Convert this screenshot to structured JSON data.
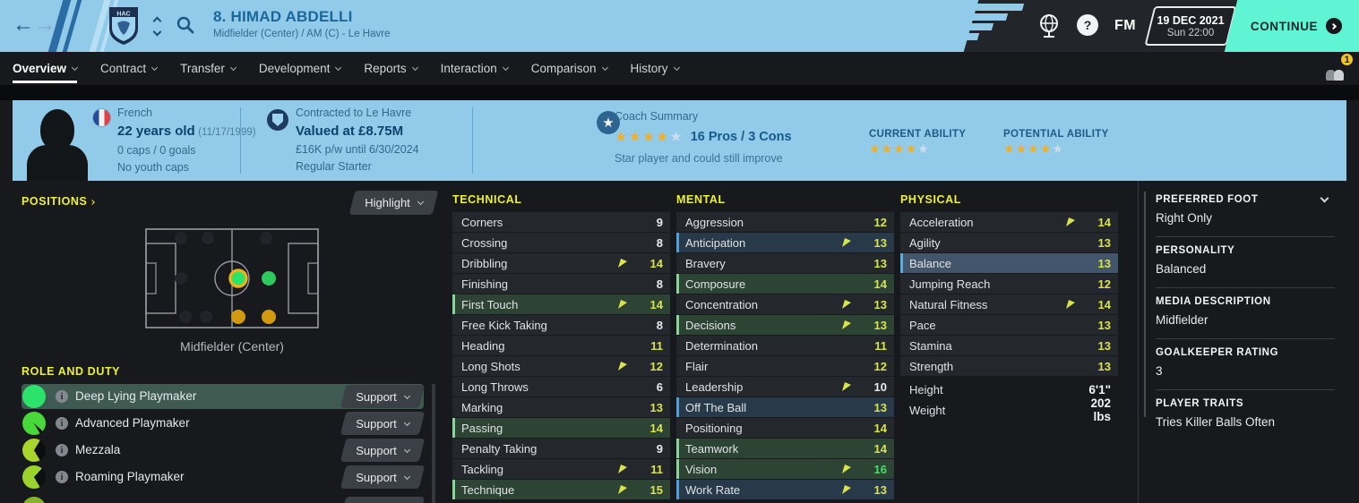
{
  "colors": {
    "header_blue": "#92cbea",
    "accent_yellow": "#edf233",
    "mint_continue": "#5ff5d4",
    "star_gold": "#f2af23",
    "attr_low": "#e9ebec",
    "attr_mid": "#d9e44c",
    "attr_high": "#4ade68",
    "highlight_green_row": "#2d4435",
    "highlight_blue_row": "#28394a"
  },
  "header": {
    "player_title": "8. HIMAD ABDELLI",
    "player_subtitle": "Midfielder (Center) / AM (C) - Le Havre",
    "fm_logo": "FM",
    "date_line1": "19 DEC 2021",
    "date_line2": "Sun 22:00",
    "continue_label": "CONTINUE"
  },
  "tabs": [
    {
      "label": "Overview",
      "active": true
    },
    {
      "label": "Contract"
    },
    {
      "label": "Transfer"
    },
    {
      "label": "Development"
    },
    {
      "label": "Reports"
    },
    {
      "label": "Interaction"
    },
    {
      "label": "Comparison"
    },
    {
      "label": "History"
    }
  ],
  "notification_badge": "1",
  "info_bar": {
    "nationality": "French",
    "age_bold": "22 years old",
    "birthdate": "(11/17/1999)",
    "caps": "0 caps / 0 goals",
    "youth_caps": "No youth caps",
    "contracted": "Contracted to Le Havre",
    "value_bold": "Valued at £8.75M",
    "wage": "£16K p/w until 6/30/2024",
    "status": "Regular Starter",
    "coach_summary_label": "Coach Summary",
    "coach_stars": 4,
    "stars_total": 5,
    "pros_cons": "16 Pros / 3 Cons",
    "coach_note": "Star player and could still improve",
    "current_ability_label": "CURRENT ABILITY",
    "current_ability_stars": 4,
    "potential_ability_label": "POTENTIAL ABILITY",
    "potential_ability_stars": 4
  },
  "positions": {
    "title": "POSITIONS",
    "highlight_label": "Highlight",
    "caption": "Midfielder (Center)"
  },
  "roles": {
    "title": "ROLE AND DUTY",
    "items": [
      {
        "name": "Deep Lying Playmaker",
        "duty": "Support",
        "selected": true,
        "fill": 100,
        "color": "#2be36a"
      },
      {
        "name": "Advanced Playmaker",
        "duty": "Support",
        "selected": false,
        "fill": 95,
        "color": "#49d839"
      },
      {
        "name": "Mezzala",
        "duty": "Support",
        "selected": false,
        "fill": 67,
        "color": "#a8d42c"
      },
      {
        "name": "Roaming Playmaker",
        "duty": "Support",
        "selected": false,
        "fill": 70,
        "color": "#9bd32e"
      }
    ]
  },
  "attributes": {
    "technical": {
      "title": "TECHNICAL",
      "items": [
        {
          "name": "Corners",
          "value": 9
        },
        {
          "name": "Crossing",
          "value": 8
        },
        {
          "name": "Dribbling",
          "value": 14,
          "arrow": true
        },
        {
          "name": "Finishing",
          "value": 8
        },
        {
          "name": "First Touch",
          "value": 14,
          "arrow": true,
          "highlight": "green"
        },
        {
          "name": "Free Kick Taking",
          "value": 8
        },
        {
          "name": "Heading",
          "value": 11
        },
        {
          "name": "Long Shots",
          "value": 12,
          "arrow": true
        },
        {
          "name": "Long Throws",
          "value": 6
        },
        {
          "name": "Marking",
          "value": 13
        },
        {
          "name": "Passing",
          "value": 14,
          "highlight": "green"
        },
        {
          "name": "Penalty Taking",
          "value": 9
        },
        {
          "name": "Tackling",
          "value": 11,
          "arrow": true
        },
        {
          "name": "Technique",
          "value": 15,
          "arrow": true,
          "highlight": "green"
        }
      ]
    },
    "mental": {
      "title": "MENTAL",
      "items": [
        {
          "name": "Aggression",
          "value": 12
        },
        {
          "name": "Anticipation",
          "value": 13,
          "arrow": true,
          "highlight": "blue"
        },
        {
          "name": "Bravery",
          "value": 13
        },
        {
          "name": "Composure",
          "value": 14,
          "highlight": "green"
        },
        {
          "name": "Concentration",
          "value": 13,
          "arrow": true
        },
        {
          "name": "Decisions",
          "value": 13,
          "arrow": true,
          "highlight": "green"
        },
        {
          "name": "Determination",
          "value": 11
        },
        {
          "name": "Flair",
          "value": 12
        },
        {
          "name": "Leadership",
          "value": 10,
          "arrow": true
        },
        {
          "name": "Off The Ball",
          "value": 13,
          "highlight": "blue"
        },
        {
          "name": "Positioning",
          "value": 14
        },
        {
          "name": "Teamwork",
          "value": 14,
          "highlight": "green"
        },
        {
          "name": "Vision",
          "value": 16,
          "arrow": true,
          "highlight": "green"
        },
        {
          "name": "Work Rate",
          "value": 13,
          "arrow": true,
          "highlight": "blue"
        }
      ]
    },
    "physical": {
      "title": "PHYSICAL",
      "items": [
        {
          "name": "Acceleration",
          "value": 14,
          "arrow": true
        },
        {
          "name": "Agility",
          "value": 13
        },
        {
          "name": "Balance",
          "value": 13,
          "highlight": "blue-bright"
        },
        {
          "name": "Jumping Reach",
          "value": 12
        },
        {
          "name": "Natural Fitness",
          "value": 14,
          "arrow": true
        },
        {
          "name": "Pace",
          "value": 13
        },
        {
          "name": "Stamina",
          "value": 13
        },
        {
          "name": "Strength",
          "value": 13
        }
      ],
      "extra": [
        {
          "name": "Height",
          "value": "6'1\""
        },
        {
          "name": "Weight",
          "value": "202 lbs"
        }
      ]
    }
  },
  "sidebar": {
    "sections": [
      {
        "title": "PREFERRED FOOT",
        "value": "Right Only",
        "chevron": true
      },
      {
        "title": "PERSONALITY",
        "value": "Balanced"
      },
      {
        "title": "MEDIA DESCRIPTION",
        "value": "Midfielder"
      },
      {
        "title": "GOALKEEPER RATING",
        "value": "3"
      },
      {
        "title": "PLAYER TRAITS",
        "value": "Tries Killer Balls Often"
      }
    ]
  }
}
